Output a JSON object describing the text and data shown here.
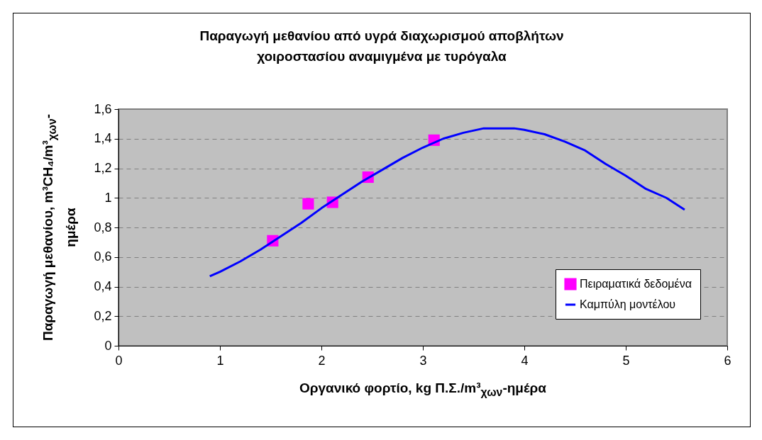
{
  "chart_data": {
    "type": "line",
    "title": "Παραγωγή μεθανίου από υγρά διαχωρισμού αποβλήτων χοιροστασίου αναμιγμένα με τυρόγαλα",
    "xlabel": "Οργανικό φορτίο, kg Π.Σ./m³$_{χων}$-ημέρα",
    "ylabel": "Παραγωγή μεθανίου, m³CH₄/m³$_{χων}$-ημέρα",
    "series": [
      {
        "name": "Πειραματικά δεδομένα",
        "type": "scatter",
        "color": "#ff00ff",
        "marker": "square",
        "x": [
          1.52,
          1.87,
          2.11,
          2.46,
          3.11
        ],
        "values": [
          0.71,
          0.96,
          0.97,
          1.14,
          1.39
        ]
      },
      {
        "name": "Καμπύλη μοντέλου",
        "type": "line",
        "color": "#0000ff",
        "line_style": "solid",
        "x": [
          0.9,
          1.0,
          1.2,
          1.4,
          1.6,
          1.8,
          2.0,
          2.2,
          2.4,
          2.6,
          2.8,
          3.0,
          3.2,
          3.4,
          3.6,
          3.8,
          3.9,
          4.0,
          4.2,
          4.4,
          4.6,
          4.8,
          5.0,
          5.2,
          5.4,
          5.58
        ],
        "values": [
          0.47,
          0.5,
          0.57,
          0.65,
          0.74,
          0.83,
          0.93,
          1.02,
          1.11,
          1.19,
          1.27,
          1.34,
          1.4,
          1.44,
          1.47,
          1.47,
          1.47,
          1.46,
          1.43,
          1.38,
          1.32,
          1.23,
          1.15,
          1.06,
          1.0,
          0.92
        ]
      }
    ],
    "xlim": [
      0,
      6
    ],
    "xticks": [
      0,
      1,
      2,
      3,
      4,
      5,
      6
    ],
    "ylim": [
      0,
      1.6
    ],
    "yticks": [
      0,
      {
        "value": 0.2,
        "label": "0,2"
      },
      {
        "value": 0.4,
        "label": "0,4"
      },
      {
        "value": 0.6,
        "label": "0,6"
      },
      {
        "value": 0.8,
        "label": "0,8"
      },
      1,
      {
        "value": 1.2,
        "label": "1,2"
      },
      {
        "value": 1.4,
        "label": "1,4"
      },
      {
        "value": 1.6,
        "label": "1,6"
      }
    ],
    "grid": "y",
    "legend": "bottom right"
  }
}
